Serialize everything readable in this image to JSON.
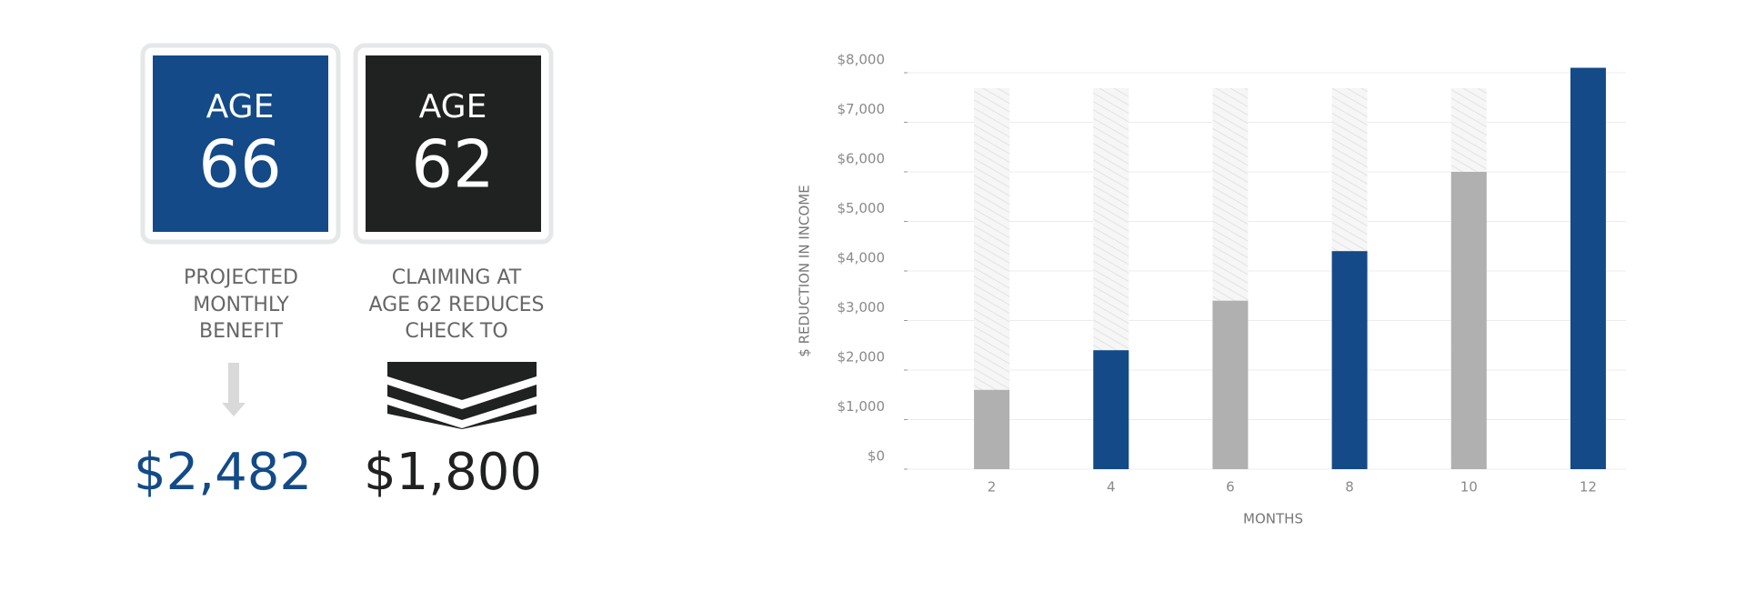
{
  "infographic": {
    "cards": [
      {
        "label": "AGE",
        "number": "66",
        "caption": [
          "PROJECTED",
          "MONTHLY",
          "BENEFIT"
        ],
        "amount": "$2,482"
      },
      {
        "label": "AGE",
        "number": "62",
        "caption": [
          "CLAIMING AT",
          "AGE 62 REDUCES",
          "CHECK TO"
        ],
        "amount": "$1,800"
      }
    ]
  },
  "chart_data": {
    "type": "bar",
    "categories": [
      2,
      4,
      6,
      8,
      10,
      12
    ],
    "values": [
      1600,
      2400,
      3400,
      4400,
      6000,
      8100
    ],
    "colors": [
      "#b0b0b0",
      "#134a87",
      "#b0b0b0",
      "#134a87",
      "#b0b0b0",
      "#134a87"
    ],
    "x_label": "MONTHS",
    "y_label": "$ REDUCTION IN INCOME",
    "ylim": [
      0,
      8000
    ],
    "yticks": [
      {
        "value": 0,
        "label": "$0"
      },
      {
        "value": 1000,
        "label": "$1,000"
      },
      {
        "value": 2000,
        "label": "$2,000"
      },
      {
        "value": 3000,
        "label": "$3,000"
      },
      {
        "value": 4000,
        "label": "$4,000"
      },
      {
        "value": 5000,
        "label": "$5,000"
      },
      {
        "value": 6000,
        "label": "$6,000"
      },
      {
        "value": 7000,
        "label": "$7,000"
      },
      {
        "value": 8000,
        "label": "$8,000"
      }
    ],
    "grid": true
  }
}
